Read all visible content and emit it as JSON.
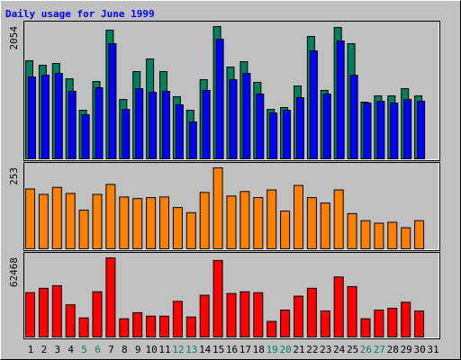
{
  "chart_data": [
    {
      "type": "bar",
      "title": "Daily usage for June 1999",
      "ylim": [
        0,
        2054
      ],
      "yticks": [
        2054
      ],
      "series": [
        {
          "color": "#00805c",
          "values": [
            1523,
            1453,
            1481,
            1243,
            754,
            1201,
            1998,
            922,
            1355,
            1551,
            1355,
            964,
            754,
            1229,
            2054,
            1425,
            1509,
            1188,
            768,
            796,
            1132,
            1900,
            1062,
            2040,
            1788,
            880,
            978,
            978,
            1090,
            978,
            0
          ]
        },
        {
          "color": "#0000ff",
          "values": [
            1271,
            1299,
            1327,
            1048,
            685,
            1104,
            1788,
            768,
            1090,
            1034,
            1048,
            838,
            573,
            1062,
            1858,
            1229,
            1327,
            1006,
            712,
            754,
            950,
            1676,
            1006,
            1830,
            1299,
            866,
            894,
            866,
            922,
            894,
            0
          ]
        }
      ]
    },
    {
      "type": "bar",
      "ylim": [
        0,
        253
      ],
      "yticks": [
        253
      ],
      "series": [
        {
          "color": "#ff8000",
          "values": [
            187,
            170,
            192,
            173,
            121,
            170,
            201,
            162,
            157,
            160,
            162,
            129,
            113,
            176,
            253,
            165,
            179,
            160,
            184,
            118,
            198,
            160,
            143,
            184,
            110,
            88,
            80,
            83,
            66,
            88,
            0
          ]
        }
      ]
    },
    {
      "type": "bar",
      "ylim": [
        0,
        62468
      ],
      "yticks": [
        62468
      ],
      "categories": [
        "1",
        "2",
        "3",
        "4",
        "5",
        "6",
        "7",
        "8",
        "9",
        "10",
        "11",
        "12",
        "13",
        "14",
        "15",
        "16",
        "17",
        "18",
        "19",
        "20",
        "21",
        "22",
        "23",
        "24",
        "25",
        "26",
        "27",
        "28",
        "29",
        "30",
        "31"
      ],
      "category_colors": [
        "#000000",
        "#000000",
        "#000000",
        "#000000",
        "#00805c",
        "#00805c",
        "#000000",
        "#000000",
        "#000000",
        "#000000",
        "#000000",
        "#00805c",
        "#00805c",
        "#000000",
        "#000000",
        "#000000",
        "#000000",
        "#000000",
        "#00805c",
        "#00805c",
        "#000000",
        "#000000",
        "#000000",
        "#000000",
        "#000000",
        "#00805c",
        "#00805c",
        "#000000",
        "#000000",
        "#000000",
        "#000000"
      ],
      "series": [
        {
          "color": "#ff0000",
          "values": [
            35011,
            38444,
            40504,
            25400,
            15103,
            35698,
            62468,
            14416,
            19222,
            16476,
            16476,
            28146,
            15789,
            32951,
            60411,
            34324,
            35698,
            35011,
            12357,
            21281,
            32265,
            38444,
            20594,
            47367,
            39816,
            14416,
            21281,
            22654,
            27459,
            20594,
            0
          ]
        }
      ]
    }
  ]
}
